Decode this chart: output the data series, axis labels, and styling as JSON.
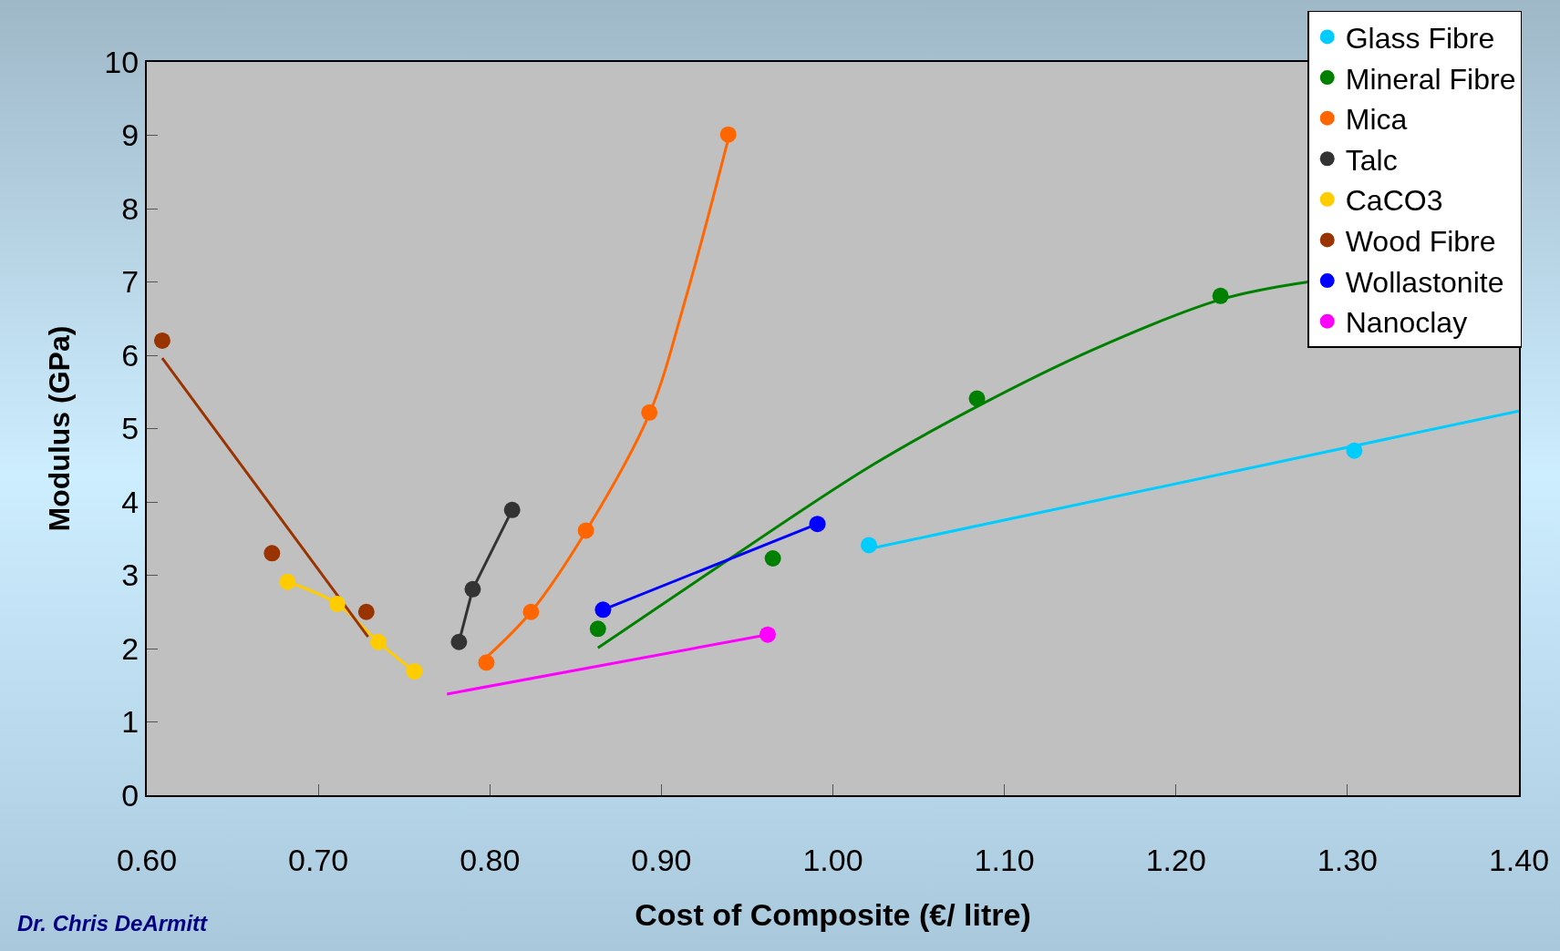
{
  "chart_data": {
    "type": "scatter",
    "xlabel": "Cost of Composite (€/ litre)",
    "ylabel": "Modulus (GPa)",
    "xlim": [
      0.6,
      1.4
    ],
    "xticks": [
      {
        "value": 0.6,
        "label": "0.60"
      },
      {
        "value": 0.7,
        "label": "0.70"
      },
      {
        "value": 0.8,
        "label": "0.80"
      },
      {
        "value": 0.9,
        "label": "0.90"
      },
      {
        "value": 1.0,
        "label": "1.00"
      },
      {
        "value": 1.1,
        "label": "1.10"
      },
      {
        "value": 1.2,
        "label": "1.20"
      },
      {
        "value": 1.3,
        "label": "1.30"
      },
      {
        "value": 1.4,
        "label": "1.40"
      }
    ],
    "ylim": [
      0,
      10
    ],
    "yticks": [
      0,
      1,
      2,
      3,
      4,
      5,
      6,
      7,
      8,
      9,
      10
    ],
    "grid": false,
    "legend": "top right",
    "marker": "circle",
    "line_style": "solid",
    "annotations": [
      "Dr. Chris DeArmitt"
    ],
    "series": [
      {
        "type": "line",
        "marker": "none",
        "color": "#00ccff",
        "x": [
          1.021,
          1.4
        ],
        "values": [
          3.36,
          5.24
        ]
      },
      {
        "type": "line",
        "marker": "none",
        "color": "#008000",
        "x": [
          0.863,
          0.92,
          1.02,
          1.084,
          1.152,
          1.226,
          1.277
        ],
        "values": [
          2.01,
          2.91,
          4.46,
          5.3,
          6.08,
          6.76,
          7.0
        ]
      },
      {
        "type": "line",
        "marker": "none",
        "color": "#ff6600",
        "x": [
          0.798,
          0.824,
          0.856,
          0.893,
          0.914,
          0.939
        ],
        "values": [
          1.88,
          2.5,
          3.6,
          5.2,
          6.76,
          8.95
        ]
      },
      {
        "type": "line",
        "marker": "none",
        "color": "#333333",
        "x": [
          0.782,
          0.79,
          0.813
        ],
        "values": [
          2.09,
          2.81,
          3.89
        ]
      },
      {
        "type": "line",
        "marker": "none",
        "color": "#ffcc00",
        "x": [
          0.682,
          0.711,
          0.735,
          0.756
        ],
        "values": [
          2.91,
          2.61,
          2.09,
          1.69
        ]
      },
      {
        "type": "line",
        "marker": "none",
        "color": "#993300",
        "x": [
          0.609,
          0.729
        ],
        "values": [
          5.96,
          2.16
        ]
      },
      {
        "type": "line",
        "marker": "none",
        "color": "#0000ff",
        "x": [
          0.866,
          0.991
        ],
        "values": [
          2.53,
          3.7
        ]
      },
      {
        "type": "line",
        "marker": "none",
        "color": "#ff00ff",
        "x": [
          0.775,
          0.962
        ],
        "values": [
          1.38,
          2.19
        ]
      },
      {
        "type": "scatter",
        "name": "Glass Fibre",
        "color": "#00ccff",
        "x": [
          1.021,
          1.304
        ],
        "values": [
          3.41,
          4.7
        ]
      },
      {
        "type": "scatter",
        "name": "Mineral Fibre",
        "color": "#008000",
        "x": [
          0.863,
          0.965,
          1.084,
          1.226
        ],
        "values": [
          2.27,
          3.23,
          5.41,
          6.81
        ]
      },
      {
        "type": "scatter",
        "name": "Mica",
        "color": "#ff6600",
        "x": [
          0.798,
          0.824,
          0.856,
          0.893,
          0.939
        ],
        "values": [
          1.81,
          2.5,
          3.61,
          5.22,
          9.01
        ]
      },
      {
        "type": "scatter",
        "name": "Talc",
        "color": "#333333",
        "x": [
          0.782,
          0.79,
          0.813
        ],
        "values": [
          2.09,
          2.81,
          3.89
        ]
      },
      {
        "type": "scatter",
        "name": "CaCO3",
        "color": "#ffcc00",
        "x": [
          0.682,
          0.711,
          0.735,
          0.756
        ],
        "values": [
          2.91,
          2.61,
          2.09,
          1.69
        ]
      },
      {
        "type": "scatter",
        "name": "Wood Fibre",
        "color": "#993300",
        "x": [
          0.609,
          0.673,
          0.728
        ],
        "values": [
          6.2,
          3.3,
          2.5
        ]
      },
      {
        "type": "scatter",
        "name": "Wollastonite",
        "color": "#0000ff",
        "x": [
          0.866,
          0.991
        ],
        "values": [
          2.53,
          3.7
        ]
      },
      {
        "type": "scatter",
        "name": "Nanoclay",
        "color": "#ff00ff",
        "x": [
          0.962
        ],
        "values": [
          2.19
        ]
      }
    ]
  }
}
